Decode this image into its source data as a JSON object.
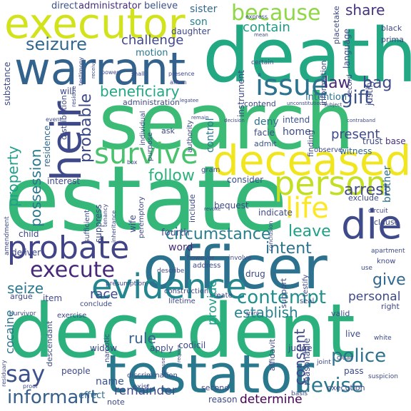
{
  "word_cloud": {
    "words": [
      {
        "text": "death",
        "color": "#23a884"
      },
      {
        "text": "search",
        "color": "#3bbb75"
      },
      {
        "text": "estate",
        "color": "#35b779"
      },
      {
        "text": "decedent",
        "color": "#2cb17e"
      },
      {
        "text": "officer",
        "color": "#2c728e"
      },
      {
        "text": "testator",
        "color": "#2a788e"
      },
      {
        "text": "executor",
        "color": "#d2e21b"
      },
      {
        "text": "warrant",
        "color": "#33638d"
      },
      {
        "text": "deceased",
        "color": "#f1e51d"
      },
      {
        "text": "person",
        "color": "#c2df23"
      },
      {
        "text": "heir",
        "color": "#3e4989"
      },
      {
        "text": "probate",
        "color": "#414487"
      },
      {
        "text": "evidence",
        "color": "#24868e"
      },
      {
        "text": "die",
        "color": "#3e4a89"
      },
      {
        "text": "survive",
        "color": "#4ac16d"
      },
      {
        "text": "issue",
        "color": "#2c728e"
      },
      {
        "text": "life",
        "color": "#fde725"
      },
      {
        "text": "execute",
        "color": "#482878"
      },
      {
        "text": "because",
        "color": "#8fd744"
      },
      {
        "text": "seizure",
        "color": "#31688e"
      },
      {
        "text": "say",
        "color": "#3b528b"
      },
      {
        "text": "informant",
        "color": "#355f8d"
      },
      {
        "text": "contempt",
        "color": "#218f8d"
      },
      {
        "text": "beneficiary",
        "color": "#22a884"
      },
      {
        "text": "devise",
        "color": "#2a788e"
      },
      {
        "text": "police",
        "color": "#2c728e"
      },
      {
        "text": "probable",
        "color": "#3e4989"
      },
      {
        "text": "circumstance",
        "color": "#277f8e"
      },
      {
        "text": "possession",
        "color": "#2a788e"
      },
      {
        "text": "property",
        "color": "#1f9e89"
      },
      {
        "text": "gift",
        "color": "#3b528b"
      },
      {
        "text": "law",
        "color": "#482878"
      },
      {
        "text": "bag",
        "color": "#3e4a89"
      },
      {
        "text": "share",
        "color": "#46327e"
      },
      {
        "text": "contain",
        "color": "#1f9a8a"
      },
      {
        "text": "challenge",
        "color": "#404688"
      },
      {
        "text": "follow",
        "color": "#2db27d"
      },
      {
        "text": "leave",
        "color": "#1fa187"
      },
      {
        "text": "arrest",
        "color": "#3e4a89"
      },
      {
        "text": "intent",
        "color": "#2c728e"
      },
      {
        "text": "rule",
        "color": "#34618d"
      },
      {
        "text": "race",
        "color": "#3e4989"
      },
      {
        "text": "seize",
        "color": "#2a788e"
      },
      {
        "text": "give",
        "color": "#31688e"
      },
      {
        "text": "establish",
        "color": "#26828e"
      },
      {
        "text": "present",
        "color": "#3e4a89"
      },
      {
        "text": "consent",
        "color": "#3e4989"
      },
      {
        "text": "remainder",
        "color": "#3e4989"
      },
      {
        "text": "determine",
        "color": "#440154"
      },
      {
        "text": "name",
        "color": "#3b528b"
      },
      {
        "text": "effect",
        "color": "#31688e"
      },
      {
        "text": "provide",
        "color": "#1f9e89"
      },
      {
        "text": "personal",
        "color": "#3e4989"
      },
      {
        "text": "cocaine",
        "color": "#2c728e"
      },
      {
        "text": "word",
        "color": "#472d7b"
      },
      {
        "text": "fourth",
        "color": "#3e4989"
      },
      {
        "text": "motion",
        "color": "#2a788e"
      },
      {
        "text": "sister",
        "color": "#31688e"
      },
      {
        "text": "son",
        "color": "#26828e"
      },
      {
        "text": "direct",
        "color": "#3b528b"
      },
      {
        "text": "administrator",
        "color": "#472d7b"
      },
      {
        "text": "believe",
        "color": "#3b528b"
      },
      {
        "text": "substance",
        "color": "#3e4989"
      },
      {
        "text": "daughter",
        "color": "#3e4989"
      },
      {
        "text": "control",
        "color": "#2a788e"
      },
      {
        "text": "deny",
        "color": "#2d708e"
      },
      {
        "text": "home",
        "color": "#3e4a89"
      },
      {
        "text": "intend",
        "color": "#3b528b"
      },
      {
        "text": "facie",
        "color": "#3e4989"
      },
      {
        "text": "admit",
        "color": "#3b528b"
      },
      {
        "text": "intention",
        "color": "#2c728e"
      },
      {
        "text": "trust",
        "color": "#3e4989"
      },
      {
        "text": "base",
        "color": "#46327e"
      },
      {
        "text": "witness",
        "color": "#31688e"
      },
      {
        "text": "brother",
        "color": "#2c728e"
      },
      {
        "text": "residence",
        "color": "#31688e"
      },
      {
        "text": "interest",
        "color": "#3e4989"
      },
      {
        "text": "consider",
        "color": "#3b528b"
      },
      {
        "text": "child",
        "color": "#3e4989"
      },
      {
        "text": "deliver",
        "color": "#3e4989"
      },
      {
        "text": "wife",
        "color": "#3e4a89"
      },
      {
        "text": "suppress",
        "color": "#3e4989"
      },
      {
        "text": "bequest",
        "color": "#3e4989"
      },
      {
        "text": "indicate",
        "color": "#3e4989"
      },
      {
        "text": "include",
        "color": "#3e4989"
      },
      {
        "text": "exclude",
        "color": "#3e4989"
      },
      {
        "text": "clause",
        "color": "#3e4989"
      },
      {
        "text": "widow",
        "color": "#3e4989"
      },
      {
        "text": "apply",
        "color": "#3e4989"
      },
      {
        "text": "codicil",
        "color": "#3e4989"
      },
      {
        "text": "judge",
        "color": "#3e4989"
      },
      {
        "text": "reasonable",
        "color": "#3e4989"
      },
      {
        "text": "pass",
        "color": "#3e4989"
      },
      {
        "text": "live",
        "color": "#3e4989"
      },
      {
        "text": "execution",
        "color": "#3e4989"
      },
      {
        "text": "reason",
        "color": "#3e4989"
      },
      {
        "text": "people",
        "color": "#3e4989"
      },
      {
        "text": "item",
        "color": "#3e4989"
      },
      {
        "text": "drug",
        "color": "#3e4989"
      },
      {
        "text": "support",
        "color": "#3e4989"
      },
      {
        "text": "affidavit",
        "color": "#3e4989"
      },
      {
        "text": "descendant",
        "color": "#3e4989"
      },
      {
        "text": "narcotic",
        "color": "#3e4989"
      },
      {
        "text": "note",
        "color": "#3e4989"
      },
      {
        "text": "second",
        "color": "#3e4989"
      },
      {
        "text": "exist",
        "color": "#3e4989"
      },
      {
        "text": "argue",
        "color": "#3e4989"
      },
      {
        "text": "valid",
        "color": "#3e4989"
      },
      {
        "text": "right",
        "color": "#3e4989"
      },
      {
        "text": "language",
        "color": "#3e4989"
      },
      {
        "text": "place",
        "color": "#3e4989"
      },
      {
        "text": "take",
        "color": "#3e4989"
      },
      {
        "text": "justify",
        "color": "#3e4989"
      },
      {
        "text": "record",
        "color": "#3e4989"
      },
      {
        "text": "information",
        "color": "#3e4989"
      },
      {
        "text": "finding",
        "color": "#3e4989"
      },
      {
        "text": "instrument",
        "color": "#3e4989"
      },
      {
        "text": "distribution",
        "color": "#3e4989"
      },
      {
        "text": "will",
        "color": "#3e4989"
      },
      {
        "text": "administration",
        "color": "#3e4989"
      },
      {
        "text": "ask",
        "color": "#3e4989"
      },
      {
        "text": "purpose",
        "color": "#3e4989"
      },
      {
        "text": "authority",
        "color": "#3e4989"
      },
      {
        "text": "black",
        "color": "#3e4989"
      },
      {
        "text": "prima",
        "color": "#3e4989"
      },
      {
        "text": "contend",
        "color": "#3e4989"
      },
      {
        "text": "amendment",
        "color": "#3e4989"
      },
      {
        "text": "sufficient",
        "color": "#3e4989"
      },
      {
        "text": "tenancy",
        "color": "#3e4989"
      },
      {
        "text": "observe",
        "color": "#3e4989"
      },
      {
        "text": "gram",
        "color": "#3e4989"
      },
      {
        "text": "address",
        "color": "#3e4989"
      },
      {
        "text": "create",
        "color": "#3e4989"
      },
      {
        "text": "construction",
        "color": "#3e4989"
      },
      {
        "text": "conclude",
        "color": "#3e4989"
      },
      {
        "text": "lifetime",
        "color": "#3e4989"
      },
      {
        "text": "exercise",
        "color": "#3e4989"
      },
      {
        "text": "discrimination",
        "color": "#3e4989"
      },
      {
        "text": "residuary",
        "color": "#3e4989"
      },
      {
        "text": "survivor",
        "color": "#3e4989"
      },
      {
        "text": "peremptory",
        "color": "#3e4989"
      },
      {
        "text": "inheritance",
        "color": "#3e4989"
      },
      {
        "text": "presumption",
        "color": "#3e4989"
      },
      {
        "text": "describe",
        "color": "#3e4989"
      },
      {
        "text": "however",
        "color": "#3e4989"
      },
      {
        "text": "involve",
        "color": "#3e4989"
      },
      {
        "text": "conclusion",
        "color": "#3e4989"
      },
      {
        "text": "apartment",
        "color": "#3e4989"
      },
      {
        "text": "circuit",
        "color": "#3e4989"
      },
      {
        "text": "know",
        "color": "#3e4989"
      },
      {
        "text": "use",
        "color": "#3e4989"
      },
      {
        "text": "testify",
        "color": "#3e4989"
      },
      {
        "text": "seal",
        "color": "#3e4989"
      },
      {
        "text": "clear",
        "color": "#3e4989"
      },
      {
        "text": "white",
        "color": "#3e4989"
      },
      {
        "text": "joint",
        "color": "#3e4989"
      },
      {
        "text": "suspicion",
        "color": "#3e4989"
      },
      {
        "text": "basis",
        "color": "#3e4989"
      },
      {
        "text": "require",
        "color": "#3e4989"
      },
      {
        "text": "express",
        "color": "#3e4989"
      },
      {
        "text": "mean",
        "color": "#3e4989"
      },
      {
        "text": "certain",
        "color": "#3e4989"
      },
      {
        "text": "power",
        "color": "#3e4989"
      },
      {
        "text": "shall",
        "color": "#3e4989"
      },
      {
        "text": "testimony",
        "color": "#3e4989"
      },
      {
        "text": "receive",
        "color": "#3e4989"
      },
      {
        "text": "affirm",
        "color": "#3e4989"
      },
      {
        "text": "presence",
        "color": "#3e4989"
      },
      {
        "text": "decision",
        "color": "#3e4989"
      },
      {
        "text": "subject",
        "color": "#3e4989"
      },
      {
        "text": "contraband",
        "color": "#3e4989"
      },
      {
        "text": "individual",
        "color": "#3e4989"
      },
      {
        "text": "unconstitutional",
        "color": "#3e4989"
      },
      {
        "text": "legatee",
        "color": "#3e4989"
      },
      {
        "text": "event",
        "color": "#3e4989"
      },
      {
        "text": "residue",
        "color": "#3e4989"
      },
      {
        "text": "remain",
        "color": "#3e4989"
      },
      {
        "text": "revoke",
        "color": "#3e4989"
      },
      {
        "text": "box",
        "color": "#3e4989"
      },
      {
        "text": "grant",
        "color": "#3e4989"
      },
      {
        "text": "proof",
        "color": "#3e4989"
      },
      {
        "text": "spouse",
        "color": "#3e4989"
      }
    ]
  }
}
